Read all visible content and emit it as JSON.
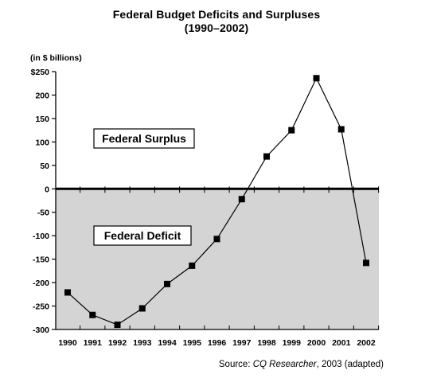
{
  "chart_data": {
    "type": "line",
    "title": "Federal Budget Deficits and Surpluses",
    "subtitle": "(1990–2002)",
    "ylabel": "(in $ billions)",
    "xlabel": "",
    "x": [
      1990,
      1991,
      1992,
      1993,
      1994,
      1995,
      1996,
      1997,
      1998,
      1999,
      2000,
      2001,
      2002
    ],
    "y": [
      -221,
      -269,
      -290,
      -255,
      -203,
      -164,
      -107,
      -22,
      69,
      125,
      236,
      127,
      -158
    ],
    "ylim": [
      -300,
      250
    ],
    "yticks": [
      250,
      200,
      150,
      100,
      50,
      0,
      -50,
      -100,
      -150,
      -200,
      -250,
      -300
    ],
    "ytick_labels": [
      "$250",
      "200",
      "150",
      "100",
      "50",
      "0",
      "-50",
      "-100",
      "-150",
      "-200",
      "-250",
      "-300"
    ],
    "xtick_labels": [
      "1990",
      "1991",
      "1992",
      "1993",
      "1994",
      "1995",
      "1996",
      "1997",
      "1998",
      "1999",
      "2000",
      "2001",
      "2002"
    ],
    "regions": {
      "surplus_label": "Federal Surplus",
      "deficit_label": "Federal Deficit"
    },
    "deficit_fill": "#d4d4d4",
    "grid": false,
    "legend": "none"
  },
  "source": {
    "prefix": "Source: ",
    "publication": "CQ Researcher",
    "suffix": ", 2003 (adapted)"
  }
}
